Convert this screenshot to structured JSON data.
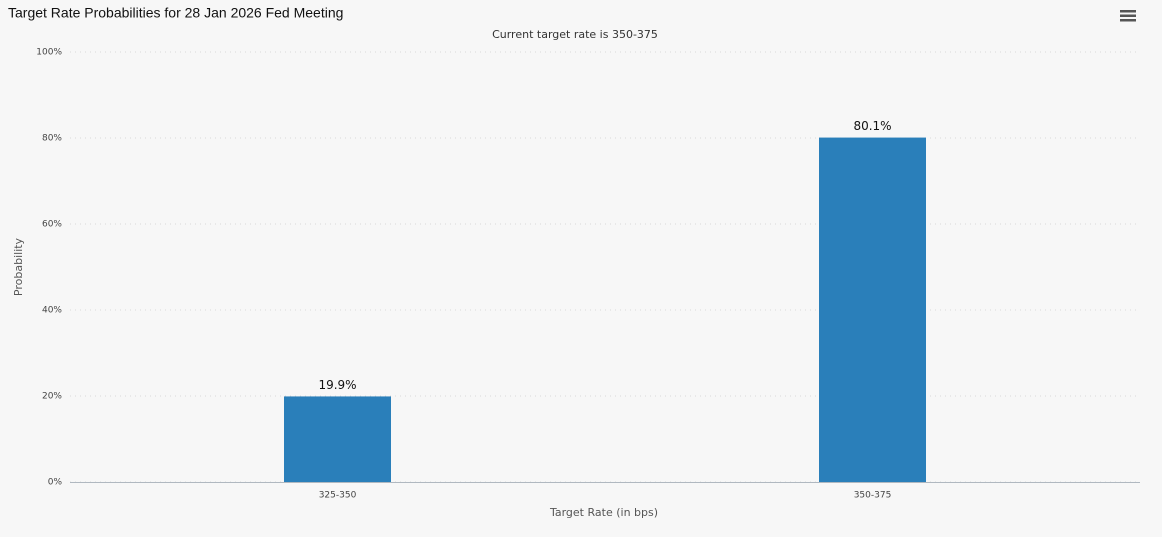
{
  "chart_data": {
    "type": "bar",
    "title": "Target Rate Probabilities for 28 Jan 2026 Fed Meeting",
    "subtitle": "Current target rate is 350-375",
    "x_label": "Target Rate (in bps)",
    "y_label": "Probability",
    "categories": [
      "325-350",
      "350-375"
    ],
    "values": [
      19.9,
      80.1
    ],
    "value_labels": [
      "19.9%",
      "80.1%"
    ],
    "color": "#2a7fba",
    "ylim": [
      0,
      100
    ],
    "yticks": [
      {
        "value": 0,
        "label": "0%"
      },
      {
        "value": 20,
        "label": "20%"
      },
      {
        "value": 40,
        "label": "40%"
      },
      {
        "value": 60,
        "label": "60%"
      },
      {
        "value": 80,
        "label": "80%"
      },
      {
        "value": 100,
        "label": "100%"
      }
    ],
    "grid": true
  }
}
